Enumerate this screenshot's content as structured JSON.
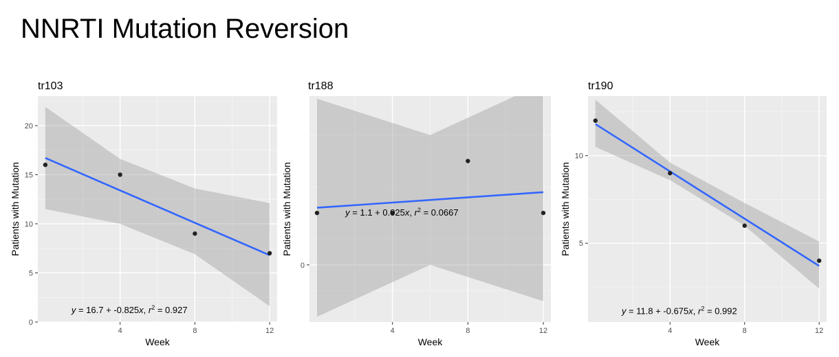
{
  "title": "NNRTI Mutation Reversion",
  "chart_data": [
    {
      "type": "scatter",
      "title": "tr103",
      "xlabel": "Week",
      "ylabel": "Patients with Mutation",
      "xlim": [
        -0.4,
        12.4
      ],
      "ylim": [
        0,
        23
      ],
      "x_ticks": [
        4,
        8,
        12
      ],
      "y_ticks": [
        0,
        5,
        10,
        15,
        20
      ],
      "grid": true,
      "points": [
        {
          "x": 0,
          "y": 16
        },
        {
          "x": 4,
          "y": 15
        },
        {
          "x": 8,
          "y": 9
        },
        {
          "x": 12,
          "y": 7
        }
      ],
      "fit": {
        "intercept": 16.7,
        "slope": -0.825
      },
      "confidence_band": {
        "x": [
          0,
          4,
          8,
          12
        ],
        "lower": [
          11.5,
          10.0,
          6.9,
          1.6
        ],
        "upper": [
          21.9,
          16.6,
          13.6,
          12.1
        ]
      },
      "equation": {
        "prefix": "y",
        "mid": " = 16.7 + -0.825",
        "var": "x",
        "sep": ",  ",
        "r": "r",
        "sup": "2",
        "suffix": " = 0.927",
        "x": 4.5,
        "y": 0.9
      }
    },
    {
      "type": "scatter",
      "title": "tr188",
      "xlabel": "Week",
      "ylabel": "Patients with Mutation",
      "xlim": [
        -0.4,
        12.4
      ],
      "ylim": [
        -1.1,
        3.25
      ],
      "x_ticks": [
        4,
        8,
        12
      ],
      "y_ticks": [
        0
      ],
      "grid": true,
      "points": [
        {
          "x": 0,
          "y": 1
        },
        {
          "x": 4,
          "y": 1
        },
        {
          "x": 8,
          "y": 2
        },
        {
          "x": 12,
          "y": 1
        }
      ],
      "fit": {
        "intercept": 1.1,
        "slope": 0.025
      },
      "confidence_band": {
        "x": [
          0,
          6,
          12
        ],
        "lower": [
          -1.0,
          0.0,
          -0.7
        ],
        "upper": [
          3.2,
          2.5,
          3.5
        ]
      },
      "equation": {
        "prefix": "y",
        "mid": " = 1.1 + 0.025",
        "var": "x",
        "sep": ",  ",
        "r": "r",
        "sup": "2",
        "suffix": " = 0.0667",
        "x": 4.5,
        "y": 0.95
      }
    },
    {
      "type": "scatter",
      "title": "tr190",
      "xlabel": "Week",
      "ylabel": "Patients with Mutation",
      "xlim": [
        -0.4,
        12.4
      ],
      "ylim": [
        0.5,
        13.4
      ],
      "x_ticks": [
        4,
        8,
        12
      ],
      "y_ticks": [
        5,
        10
      ],
      "grid": true,
      "points": [
        {
          "x": 0,
          "y": 12
        },
        {
          "x": 4,
          "y": 9
        },
        {
          "x": 8,
          "y": 6
        },
        {
          "x": 12,
          "y": 4
        }
      ],
      "fit": {
        "intercept": 11.8,
        "slope": -0.675
      },
      "confidence_band": {
        "x": [
          0,
          4,
          8,
          12
        ],
        "lower": [
          10.5,
          8.6,
          6.0,
          2.4
        ],
        "upper": [
          13.2,
          9.6,
          7.3,
          5.1
        ]
      },
      "equation": {
        "prefix": "y",
        "mid": " = 11.8 + -0.675",
        "var": "x",
        "sep": ",  ",
        "r": "r",
        "sup": "2",
        "suffix": " = 0.992",
        "x": 4.5,
        "y": 0.95
      }
    }
  ]
}
